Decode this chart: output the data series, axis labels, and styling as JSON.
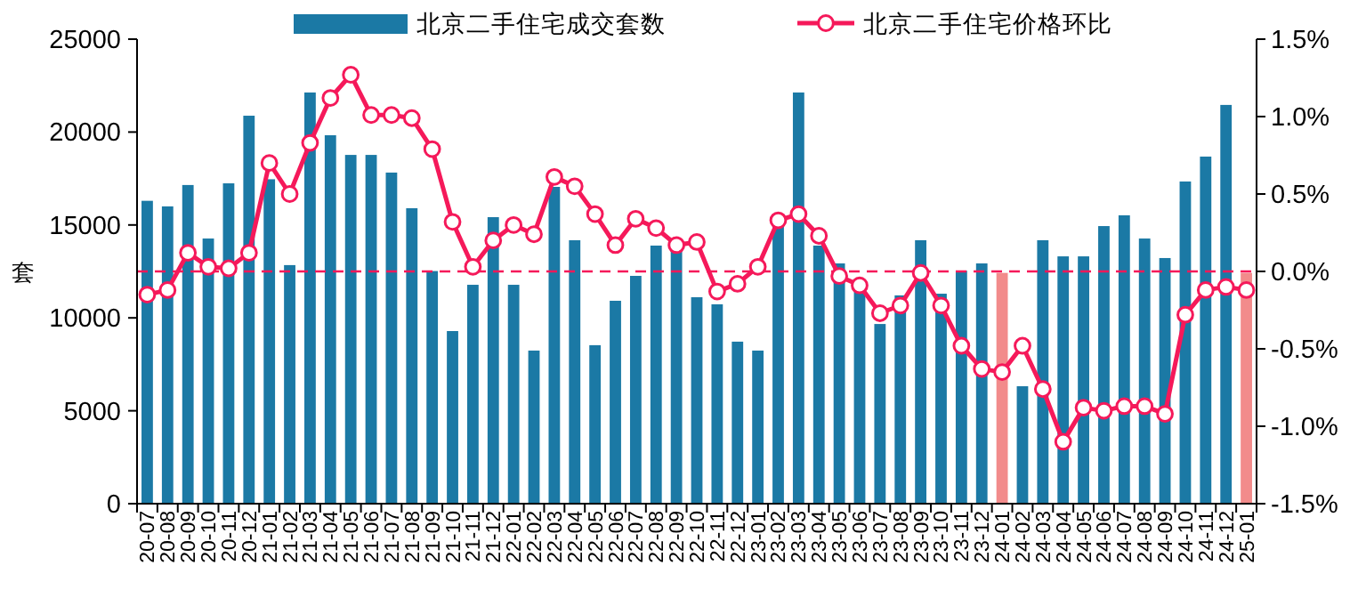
{
  "chart_data": {
    "type": "bar",
    "categories": [
      "20-07",
      "20-08",
      "20-09",
      "20-10",
      "20-11",
      "20-12",
      "21-01",
      "21-02",
      "21-03",
      "21-04",
      "21-05",
      "21-06",
      "21-07",
      "21-08",
      "21-09",
      "21-10",
      "21-11",
      "21-12",
      "22-01",
      "22-02",
      "22-03",
      "22-04",
      "22-05",
      "22-06",
      "22-07",
      "22-08",
      "22-09",
      "22-10",
      "22-11",
      "22-12",
      "23-01",
      "23-02",
      "23-03",
      "23-04",
      "23-05",
      "23-06",
      "23-07",
      "23-08",
      "23-09",
      "23-10",
      "23-11",
      "23-12",
      "24-01",
      "24-02",
      "24-03",
      "24-04",
      "24-05",
      "24-06",
      "24-07",
      "24-08",
      "24-09",
      "24-10",
      "24-11",
      "24-12",
      "25-01"
    ],
    "ylabel": "套",
    "ylim": [
      0,
      25000
    ],
    "yticks": [
      0,
      5000,
      10000,
      15000,
      20000,
      25000
    ],
    "y2lim": [
      -1.5,
      1.5
    ],
    "y2ticks": [
      {
        "value": -1.5,
        "label": "-1.5%"
      },
      {
        "value": -1.0,
        "label": "-1.0%"
      },
      {
        "value": -0.5,
        "label": "-0.5%"
      },
      {
        "value": 0,
        "label": "0.0%"
      },
      {
        "value": 0.5,
        "label": "0.5%"
      },
      {
        "value": 1.0,
        "label": "1.0%"
      },
      {
        "value": 1.5,
        "label": "1.5%"
      }
    ],
    "series": [
      {
        "name": "北京二手住宅成交套数",
        "type": "bar",
        "color": "#1b79a5",
        "colors": [
          "#1b79a5",
          "#1b79a5",
          "#1b79a5",
          "#1b79a5",
          "#1b79a5",
          "#1b79a5",
          "#1b79a5",
          "#1b79a5",
          "#1b79a5",
          "#1b79a5",
          "#1b79a5",
          "#1b79a5",
          "#1b79a5",
          "#1b79a5",
          "#1b79a5",
          "#1b79a5",
          "#1b79a5",
          "#1b79a5",
          "#1b79a5",
          "#1b79a5",
          "#1b79a5",
          "#1b79a5",
          "#1b79a5",
          "#1b79a5",
          "#1b79a5",
          "#1b79a5",
          "#1b79a5",
          "#1b79a5",
          "#1b79a5",
          "#1b79a5",
          "#1b79a5",
          "#1b79a5",
          "#1b79a5",
          "#1b79a5",
          "#1b79a5",
          "#1b79a5",
          "#1b79a5",
          "#1b79a5",
          "#1b79a5",
          "#1b79a5",
          "#1b79a5",
          "#1b79a5",
          "#f28b8b",
          "#1b79a5",
          "#1b79a5",
          "#1b79a5",
          "#1b79a5",
          "#1b79a5",
          "#1b79a5",
          "#1b79a5",
          "#1b79a5",
          "#1b79a5",
          "#1b79a5",
          "#1b79a5",
          "#f28b8b"
        ],
        "values": [
          16300,
          16000,
          17150,
          14270,
          17240,
          20880,
          17460,
          12840,
          22130,
          19830,
          18770,
          18770,
          17820,
          15900,
          12520,
          9290,
          11780,
          15420,
          11780,
          8240,
          17050,
          14180,
          8530,
          10920,
          12260,
          13890,
          13700,
          11110,
          10730,
          8720,
          8240,
          14940,
          22130,
          13890,
          12930,
          11400,
          9670,
          11210,
          14180,
          11300,
          12540,
          12930,
          12420,
          6320,
          14180,
          13310,
          13310,
          14940,
          15520,
          14270,
          13220,
          17340,
          18680,
          21460,
          12420
        ]
      },
      {
        "name": "北京二手住宅价格环比",
        "type": "line",
        "axis": "y2",
        "color": "#f5195a",
        "values": [
          -0.15,
          -0.12,
          0.12,
          0.03,
          0.02,
          0.12,
          0.7,
          0.5,
          0.83,
          1.12,
          1.27,
          1.01,
          1.01,
          0.99,
          0.79,
          0.32,
          0.03,
          0.2,
          0.3,
          0.24,
          0.61,
          0.55,
          0.37,
          0.17,
          0.34,
          0.28,
          0.17,
          0.19,
          -0.13,
          -0.08,
          0.03,
          0.33,
          0.37,
          0.23,
          -0.03,
          -0.09,
          -0.27,
          -0.22,
          -0.01,
          -0.22,
          -0.48,
          -0.63,
          -0.65,
          -0.48,
          -0.76,
          -1.1,
          -0.88,
          -0.9,
          -0.87,
          -0.87,
          -0.92,
          -0.28,
          -0.12,
          -0.1,
          -0.12
        ]
      }
    ],
    "ref_lines": [
      {
        "axis": "y2",
        "value": 0,
        "color": "#f5195a",
        "line_style": "dashed"
      }
    ],
    "marker": "circle",
    "line_style": "solid",
    "legend": "top"
  }
}
